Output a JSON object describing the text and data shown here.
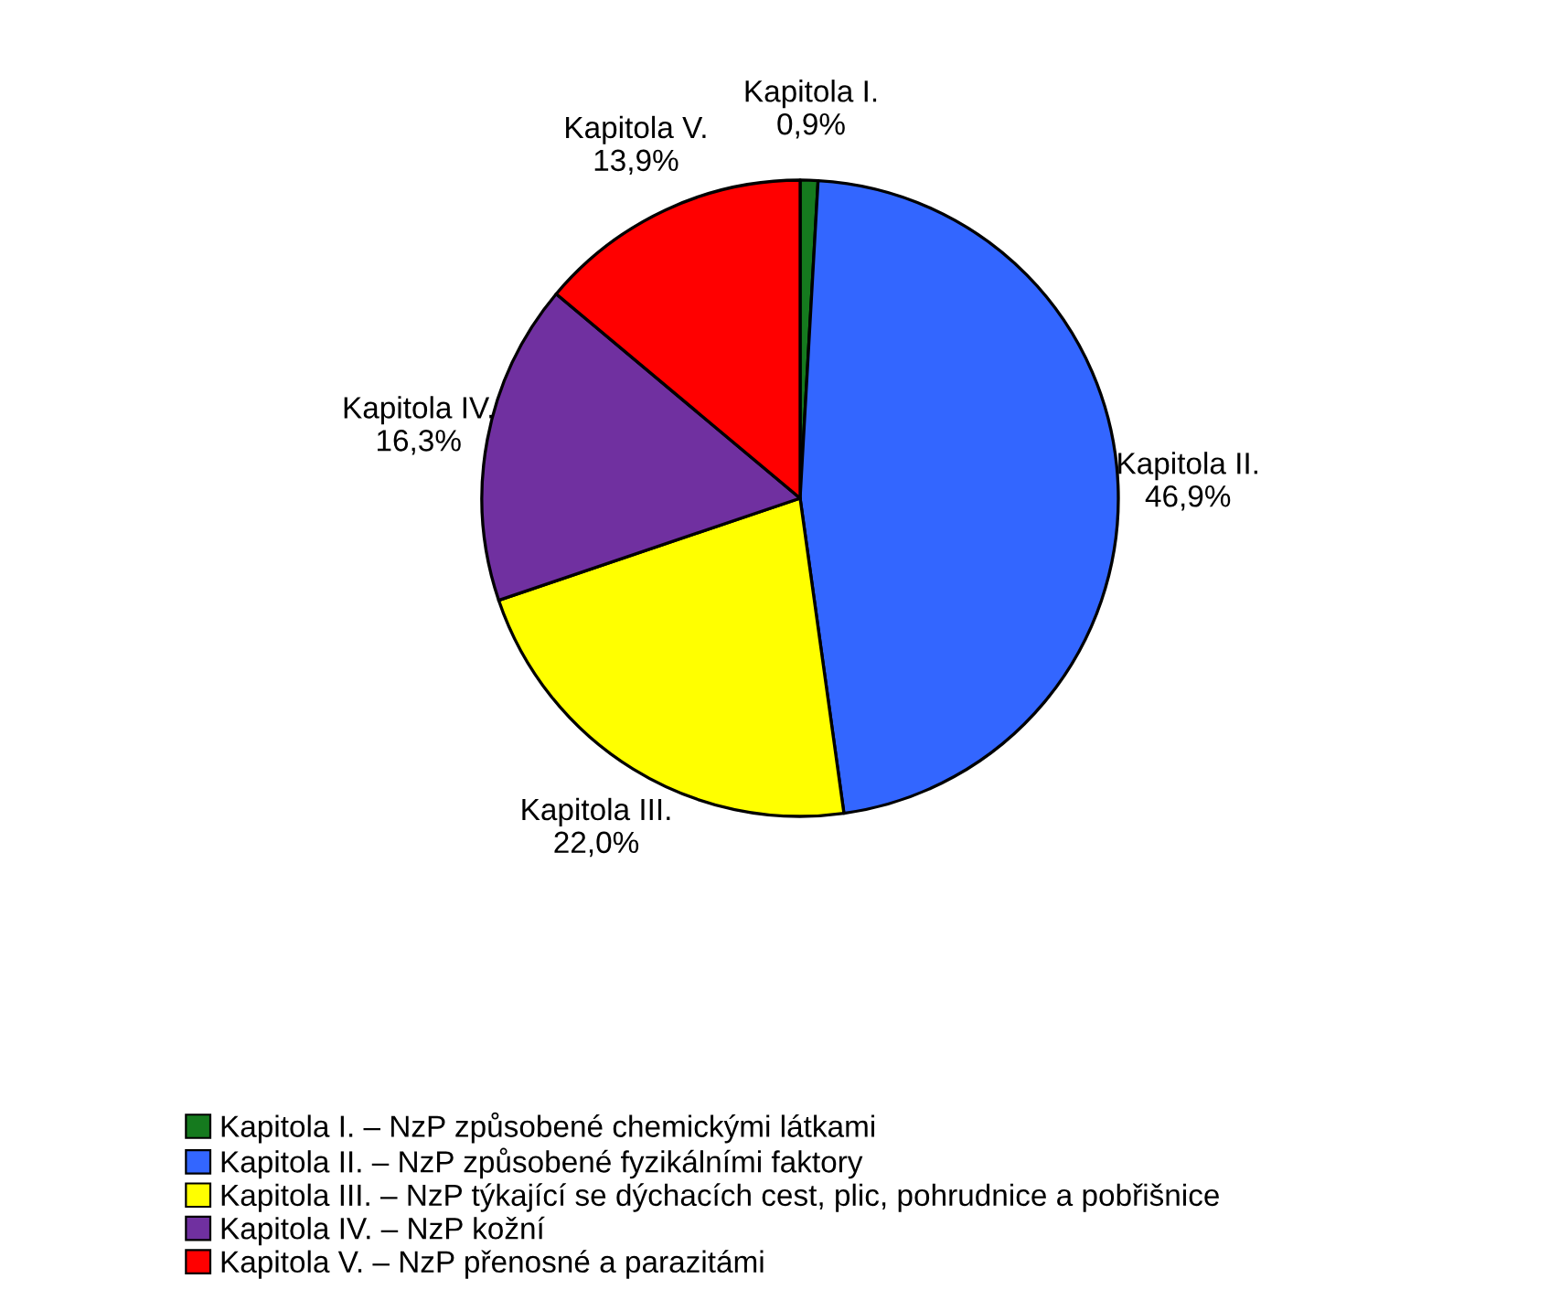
{
  "chart_data": {
    "type": "pie",
    "categories": [
      "Kapitola I. – NzP způsobené chemickými látkami",
      "Kapitola II. – NzP způsobené fyzikálními faktory",
      "Kapitola III. – NzP týkající se dýchacích cest, plic, pohrudnice a pobřišnice",
      "Kapitola IV. – NzP kožní",
      "Kapitola V. – NzP přenosné a parazitámi"
    ],
    "values": [
      0.9,
      46.9,
      22.0,
      16.3,
      13.9
    ],
    "colors": [
      "#157a1e",
      "#3366ff",
      "#ffff00",
      "#7030a0",
      "#ff0000"
    ],
    "value_labels": [
      "Kapitola I.\n0,9%",
      "Kapitola II.\n46,9%",
      "Kapitola III.\n22,0%",
      "Kapitola IV.\n16,3%",
      "Kapitola V.\n13,9%"
    ],
    "legend": "bottom left"
  }
}
